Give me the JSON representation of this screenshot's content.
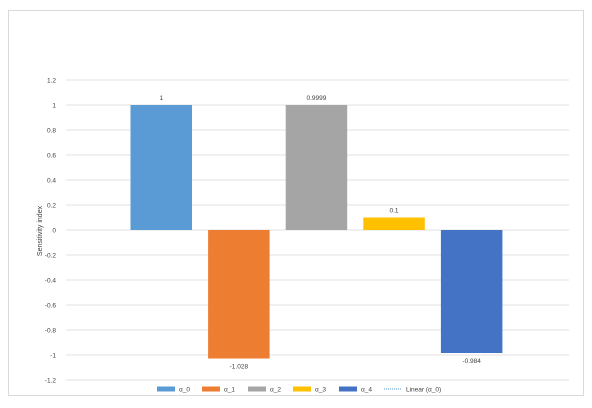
{
  "chart_data": {
    "type": "bar",
    "title": "",
    "xlabel": "",
    "ylabel": "Sensitivity index",
    "ylim": [
      -1.2,
      1.2
    ],
    "yticks": [
      1.2,
      1,
      0.8,
      0.6,
      0.4,
      0.2,
      0,
      -0.2,
      -0.4,
      -0.6,
      -0.8,
      -1,
      -1.2
    ],
    "ytick_labels": [
      "1.2",
      "1",
      "0.8",
      "0.6",
      "0.4",
      "0.2",
      "0",
      "-0.2",
      "-0.4",
      "-0.6",
      "-0.8",
      "-1",
      "-1.2"
    ],
    "grid": true,
    "legend_position": "bottom",
    "series": [
      {
        "name": "α_0",
        "value": 1,
        "label": "1",
        "color": "#5b9bd5"
      },
      {
        "name": "α_1",
        "value": -1.028,
        "label": "-1.028",
        "color": "#ed7d31"
      },
      {
        "name": "α_2",
        "value": 0.9999,
        "label": "0.9999",
        "color": "#a5a5a5"
      },
      {
        "name": "α_3",
        "value": 0.1,
        "label": "0.1",
        "color": "#ffc000"
      },
      {
        "name": "α_4",
        "value": -0.984,
        "label": "-0.984",
        "color": "#4472c4"
      }
    ],
    "trendline": {
      "name": "Linear (α_0)",
      "color": "#5b9bd5",
      "style": "dotted"
    }
  }
}
